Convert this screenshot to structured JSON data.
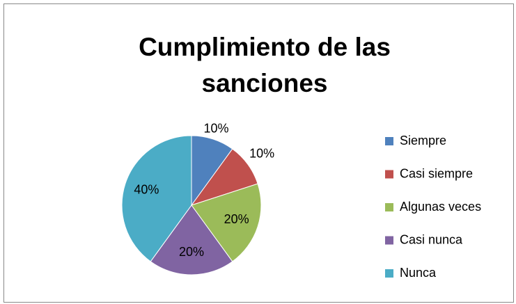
{
  "chart_data": {
    "type": "pie",
    "title": "Cumplimiento de las sanciones",
    "categories": [
      "Siempre",
      "Casi siempre",
      "Algunas veces",
      "Casi nunca",
      "Nunca"
    ],
    "values": [
      10,
      10,
      20,
      20,
      40
    ],
    "value_labels": [
      "10%",
      "10%",
      "20%",
      "20%",
      "40%"
    ],
    "colors": [
      "#4f81bd",
      "#c0504d",
      "#9bbb59",
      "#8064a2",
      "#4bacc6"
    ],
    "legend": "right"
  }
}
